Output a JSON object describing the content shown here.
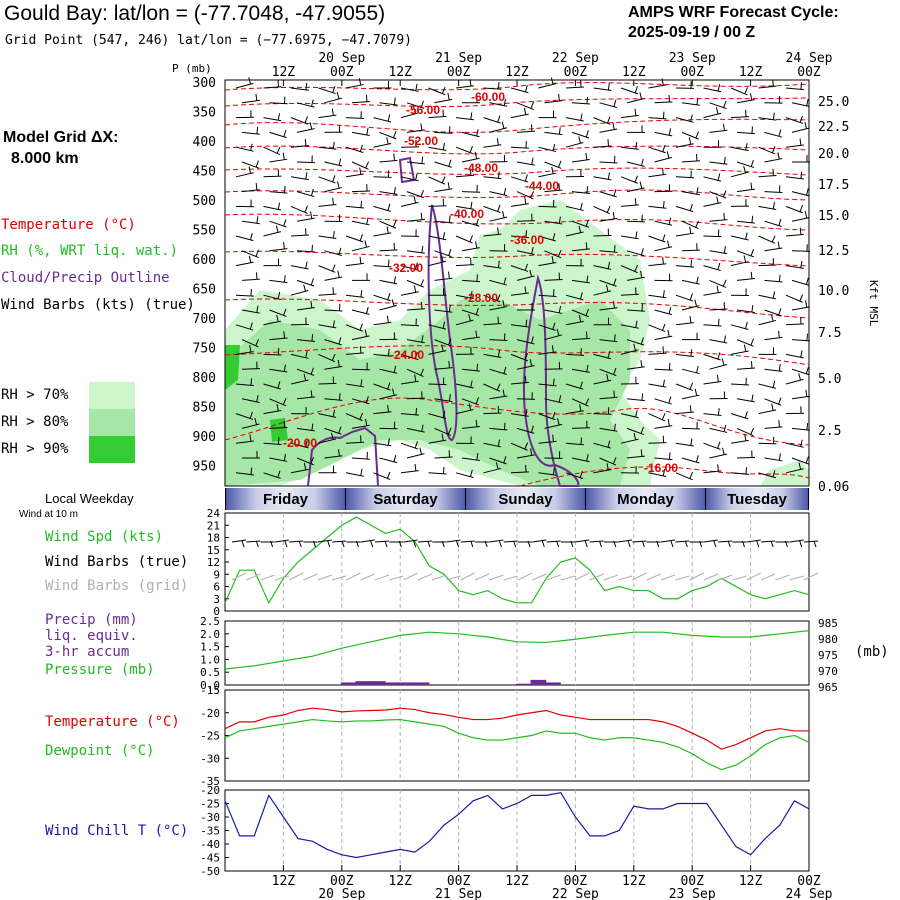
{
  "header": {
    "title": "Gould Bay:  lat/lon = (-77.7048, -47.9055)",
    "grid_point": "Grid Point (547, 246) lat/lon = (−77.6975, −47.7079)",
    "cycle_line1": "AMPS WRF Forecast Cycle:",
    "cycle_line2": "2025-09-19 / 00  Z",
    "model_grid_line1": "Model Grid ΔX:",
    "model_grid_line2": "8.000 km"
  },
  "legend": {
    "temperature": "Temperature (°C)",
    "rh": "RH (%, WRT liq. wat.)",
    "cloud": "Cloud/Precip Outline",
    "wind": "Wind Barbs (kts) (true)",
    "rh70": "RH > 70%",
    "rh80": "RH > 80%",
    "rh90": "RH > 90%",
    "pressure_axis_label": "P (mb)",
    "height_axis_label": "Kft MSL",
    "local_weekday": "Local Weekday",
    "wind_at": "Wind at 10 m",
    "wind_spd": "Wind Spd (kts)",
    "wind_barbs_true": "Wind Barbs (true)",
    "wind_barbs_grid": "Wind Barbs (grid)",
    "precip": "Precip (mm)",
    "precip2": "liq. equiv.",
    "precip3": "3-hr accum",
    "pressure": "Pressure (mb)",
    "pressure_unit": "(mb)",
    "temp2": "Temperature (°C)",
    "dewpoint": "Dewpoint (°C)",
    "windchill": "Wind Chill T (°C)"
  },
  "colors": {
    "temperature": "#e00000",
    "rh": "#22bb22",
    "cloud": "#6a2c91",
    "wind": "#000000",
    "wind_grid": "#b0b0b0",
    "windchill": "#1a1aa8",
    "rh70": "#ccf5cc",
    "rh80": "#a6e6a6",
    "rh90": "#33cc33"
  },
  "weekdays": [
    "Friday",
    "Saturday",
    "Sunday",
    "Monday",
    "Tuesday"
  ],
  "chart_data": [
    {
      "type": "line",
      "panel": "cross_section",
      "ylabel": "P (mb)",
      "y_ticks": [
        "300",
        "350",
        "400",
        "450",
        "500",
        "550",
        "600",
        "650",
        "700",
        "750",
        "800",
        "850",
        "900",
        "950"
      ],
      "y2_ticks": [
        "25.0",
        "22.5",
        "20.0",
        "17.5",
        "15.0",
        "12.5",
        "10.0",
        "7.5",
        "5.0",
        "2.5",
        "0.06"
      ],
      "x_top_ticks": [
        "12Z",
        "00Z",
        "12Z",
        "00Z",
        "12Z",
        "00Z",
        "12Z",
        "00Z",
        "12Z",
        "00Z"
      ],
      "x_dates": [
        "20 Sep",
        "21 Sep",
        "22 Sep",
        "23 Sep",
        "24 Sep"
      ],
      "contour_labels": [
        "-60.00",
        "-56.00",
        "-52.00",
        "-48.00",
        "-44.00",
        "-40.00",
        "-36.00",
        "-32.00",
        "-28.00",
        "-24.00",
        "-20.00",
        "-16.00"
      ]
    },
    {
      "type": "line",
      "panel": "wind_speed",
      "ylabel": "Wind Spd (kts)",
      "y_ticks": [
        "24",
        "21",
        "18",
        "15",
        "12",
        "9",
        "6",
        "3",
        "0"
      ],
      "ylim": [
        0,
        24
      ],
      "x": [
        0,
        3,
        6,
        9,
        12,
        15,
        18,
        21,
        24,
        27,
        30,
        33,
        36,
        39,
        42,
        45,
        48,
        51,
        54,
        57,
        60,
        63,
        66,
        69,
        72,
        75,
        78,
        81,
        84,
        87,
        90,
        93,
        96,
        99,
        102,
        105,
        108,
        111,
        114,
        117,
        120
      ],
      "series": [
        {
          "values": [
            2,
            10,
            10,
            2,
            8,
            12,
            15,
            18,
            21,
            23,
            21,
            19,
            20,
            17,
            11,
            9,
            5,
            4,
            5,
            3,
            2,
            2,
            8,
            12,
            13,
            10,
            5,
            6,
            5,
            5,
            3,
            3,
            5,
            6,
            8,
            6,
            4,
            3,
            4,
            5,
            4
          ]
        }
      ]
    },
    {
      "type": "bar",
      "panel": "precip_pressure",
      "ylabel": "Precip (mm)",
      "y_ticks": [
        "2.5",
        "2.0",
        "1.5",
        "1.0",
        "0.5",
        "0.0"
      ],
      "y2_ticks": [
        "985",
        "980",
        "975",
        "970",
        "965"
      ],
      "ylim": [
        0,
        2.5
      ],
      "y2lim": [
        965,
        985
      ],
      "precip_x": [
        24,
        27,
        30,
        33,
        36,
        39,
        60,
        63,
        66
      ],
      "precip_values": [
        0.1,
        0.15,
        0.15,
        0.1,
        0.1,
        0.1,
        0.05,
        0.2,
        0.1
      ],
      "pressure_x": [
        0,
        6,
        12,
        18,
        24,
        30,
        36,
        42,
        48,
        54,
        60,
        66,
        72,
        78,
        84,
        90,
        96,
        102,
        108,
        114,
        120
      ],
      "pressure_values": [
        970,
        971,
        972.5,
        974,
        976.5,
        978.5,
        980.5,
        981.5,
        981,
        980,
        978.5,
        978.3,
        979.3,
        980.5,
        981.5,
        981.5,
        980.5,
        980,
        980,
        981,
        982
      ]
    },
    {
      "type": "line",
      "panel": "temperature",
      "y_ticks": [
        "-15",
        "-20",
        "-25",
        "-30",
        "-35"
      ],
      "ylim": [
        -35,
        -15
      ],
      "x": [
        0,
        3,
        6,
        9,
        12,
        15,
        18,
        21,
        24,
        27,
        30,
        33,
        36,
        39,
        42,
        45,
        48,
        51,
        54,
        57,
        60,
        63,
        66,
        69,
        72,
        75,
        78,
        81,
        84,
        87,
        90,
        93,
        96,
        99,
        102,
        105,
        108,
        111,
        114,
        117,
        120
      ],
      "series": [
        {
          "name": "Temperature (°C)",
          "values": [
            -23.5,
            -22,
            -22,
            -21,
            -20.5,
            -19.5,
            -19,
            -19.3,
            -19.8,
            -19.6,
            -19.5,
            -19.4,
            -19,
            -19.3,
            -20,
            -20.4,
            -21,
            -21.5,
            -21.5,
            -21.2,
            -20.5,
            -20,
            -19.5,
            -20.5,
            -21,
            -21.5,
            -21.5,
            -21.5,
            -21.5,
            -21.5,
            -22,
            -23,
            -24.5,
            -26,
            -28,
            -27,
            -25.5,
            -24,
            -23.5,
            -24,
            -24
          ]
        },
        {
          "name": "Dewpoint (°C)",
          "values": [
            -25.5,
            -24,
            -23.5,
            -23,
            -22.5,
            -22,
            -21.5,
            -21.8,
            -22,
            -21.8,
            -21.8,
            -21.6,
            -21.5,
            -22,
            -22.5,
            -23,
            -24.5,
            -25.5,
            -26,
            -26,
            -25.5,
            -25,
            -24,
            -24.5,
            -24.5,
            -25.5,
            -26,
            -25.5,
            -25.5,
            -26,
            -26.5,
            -27.5,
            -29,
            -31,
            -32.5,
            -31.5,
            -29.5,
            -27,
            -25.5,
            -25,
            -26.5
          ]
        }
      ]
    },
    {
      "type": "line",
      "panel": "wind_chill",
      "ylabel": "Wind Chill T (°C)",
      "y_ticks": [
        "-20",
        "-25",
        "-30",
        "-35",
        "-40",
        "-45",
        "-50"
      ],
      "ylim": [
        -50,
        -20
      ],
      "x": [
        0,
        3,
        6,
        9,
        12,
        15,
        18,
        21,
        24,
        27,
        30,
        33,
        36,
        39,
        42,
        45,
        48,
        51,
        54,
        57,
        60,
        63,
        66,
        69,
        72,
        75,
        78,
        81,
        84,
        87,
        90,
        93,
        96,
        99,
        102,
        105,
        108,
        111,
        114,
        117,
        120
      ],
      "series": [
        {
          "name": "Wind Chill T (°C)",
          "values": [
            -24,
            -37,
            -37,
            -22,
            -30,
            -38,
            -39,
            -42,
            -44,
            -45,
            -44,
            -43,
            -42,
            -43,
            -39,
            -33,
            -29,
            -24,
            -22,
            -27,
            -25,
            -22,
            -22,
            -21,
            -30,
            -37,
            -37,
            -35,
            -26,
            -27,
            -27,
            -25,
            -25,
            -25,
            -33,
            -41,
            -44,
            -38,
            -33,
            -24,
            -27
          ]
        }
      ]
    }
  ]
}
